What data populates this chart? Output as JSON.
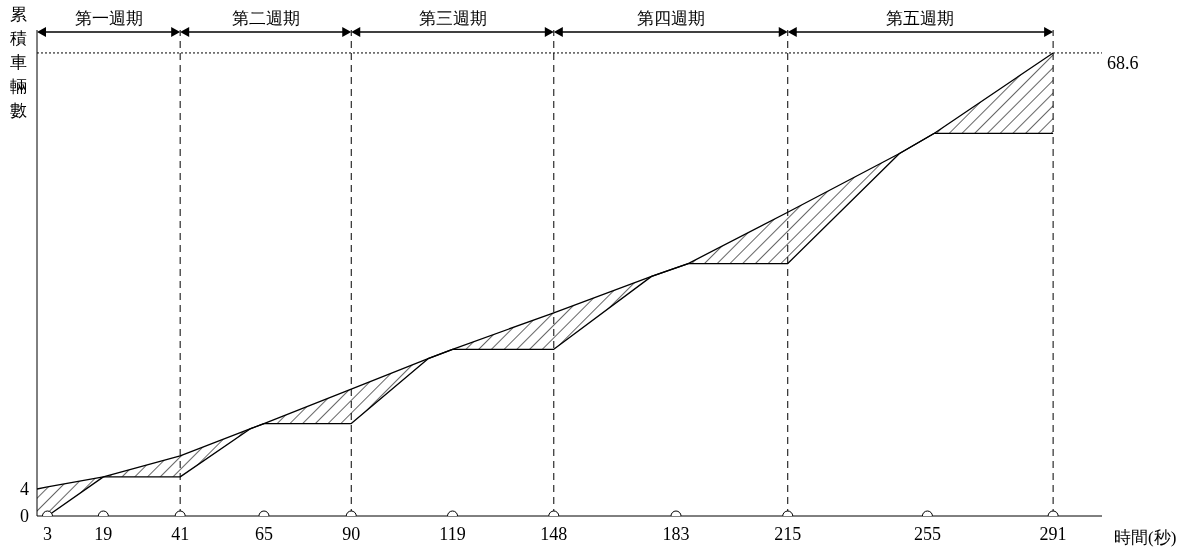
{
  "chart_data": {
    "type": "line",
    "ylabel": "累積車輛數",
    "xlabel": "時間(秒)",
    "xlim": [
      0,
      305
    ],
    "xticks": [
      3,
      19,
      41,
      65,
      90,
      119,
      148,
      183,
      215,
      255,
      291
    ],
    "ylim": [
      0,
      72
    ],
    "yticks": [
      0,
      4
    ],
    "marker": "none",
    "line_style": "solid",
    "series": [
      {
        "x": [
          0,
          3,
          19,
          41,
          61,
          65,
          90,
          112,
          119,
          148,
          176,
          186.5,
          215,
          247,
          257,
          291
        ],
        "values": [
          4,
          4.3,
          5.8,
          8.9,
          12.9,
          13.7,
          18.8,
          23.3,
          24.7,
          30.1,
          35.5,
          37.4,
          45,
          53.7,
          56.7,
          68.6
        ],
        "lower": [
          0,
          0,
          5.8,
          5.8,
          12.9,
          13.7,
          13.7,
          23.3,
          24.7,
          24.7,
          35.5,
          37.4,
          37.4,
          53.7,
          56.7,
          56.7
        ],
        "upper": [
          4,
          4.3,
          5.8,
          8.9,
          12.9,
          13.7,
          18.8,
          23.3,
          24.7,
          30.1,
          35.5,
          37.4,
          45,
          53.7,
          56.7,
          68.6
        ],
        "color": "#000000"
      },
      {
        "x": [
          3,
          19,
          41,
          61,
          65,
          90,
          112,
          119,
          148,
          176,
          186.5,
          215,
          247,
          257,
          291
        ],
        "values": [
          0,
          5.8,
          5.8,
          12.9,
          13.7,
          13.7,
          23.3,
          24.7,
          24.7,
          35.5,
          37.4,
          37.4,
          53.7,
          56.7,
          56.7
        ],
        "color": "#000000"
      },
      {
        "type": "scatter",
        "marker": "circle",
        "x": [
          3,
          19,
          41,
          65,
          90,
          119,
          148,
          183,
          215,
          255,
          291
        ],
        "values": [
          0,
          0,
          0,
          0,
          0,
          0,
          0,
          0,
          0,
          0,
          0
        ],
        "color": "#ffffff"
      }
    ],
    "ref_lines": [
      {
        "axis": "x",
        "value": 41,
        "line_style": "dashed"
      },
      {
        "axis": "x",
        "value": 90,
        "line_style": "dashed"
      },
      {
        "axis": "x",
        "value": 148,
        "line_style": "dashed"
      },
      {
        "axis": "x",
        "value": 215,
        "line_style": "dashed"
      },
      {
        "axis": "x",
        "value": 291,
        "line_style": "dashed"
      },
      {
        "axis": "y",
        "value": 68.6,
        "label": "68.6",
        "line_style": "dotted"
      }
    ],
    "annotations": [
      "第一週期",
      "第二週期",
      "第三週期",
      "第四週期",
      "第五週期"
    ]
  }
}
